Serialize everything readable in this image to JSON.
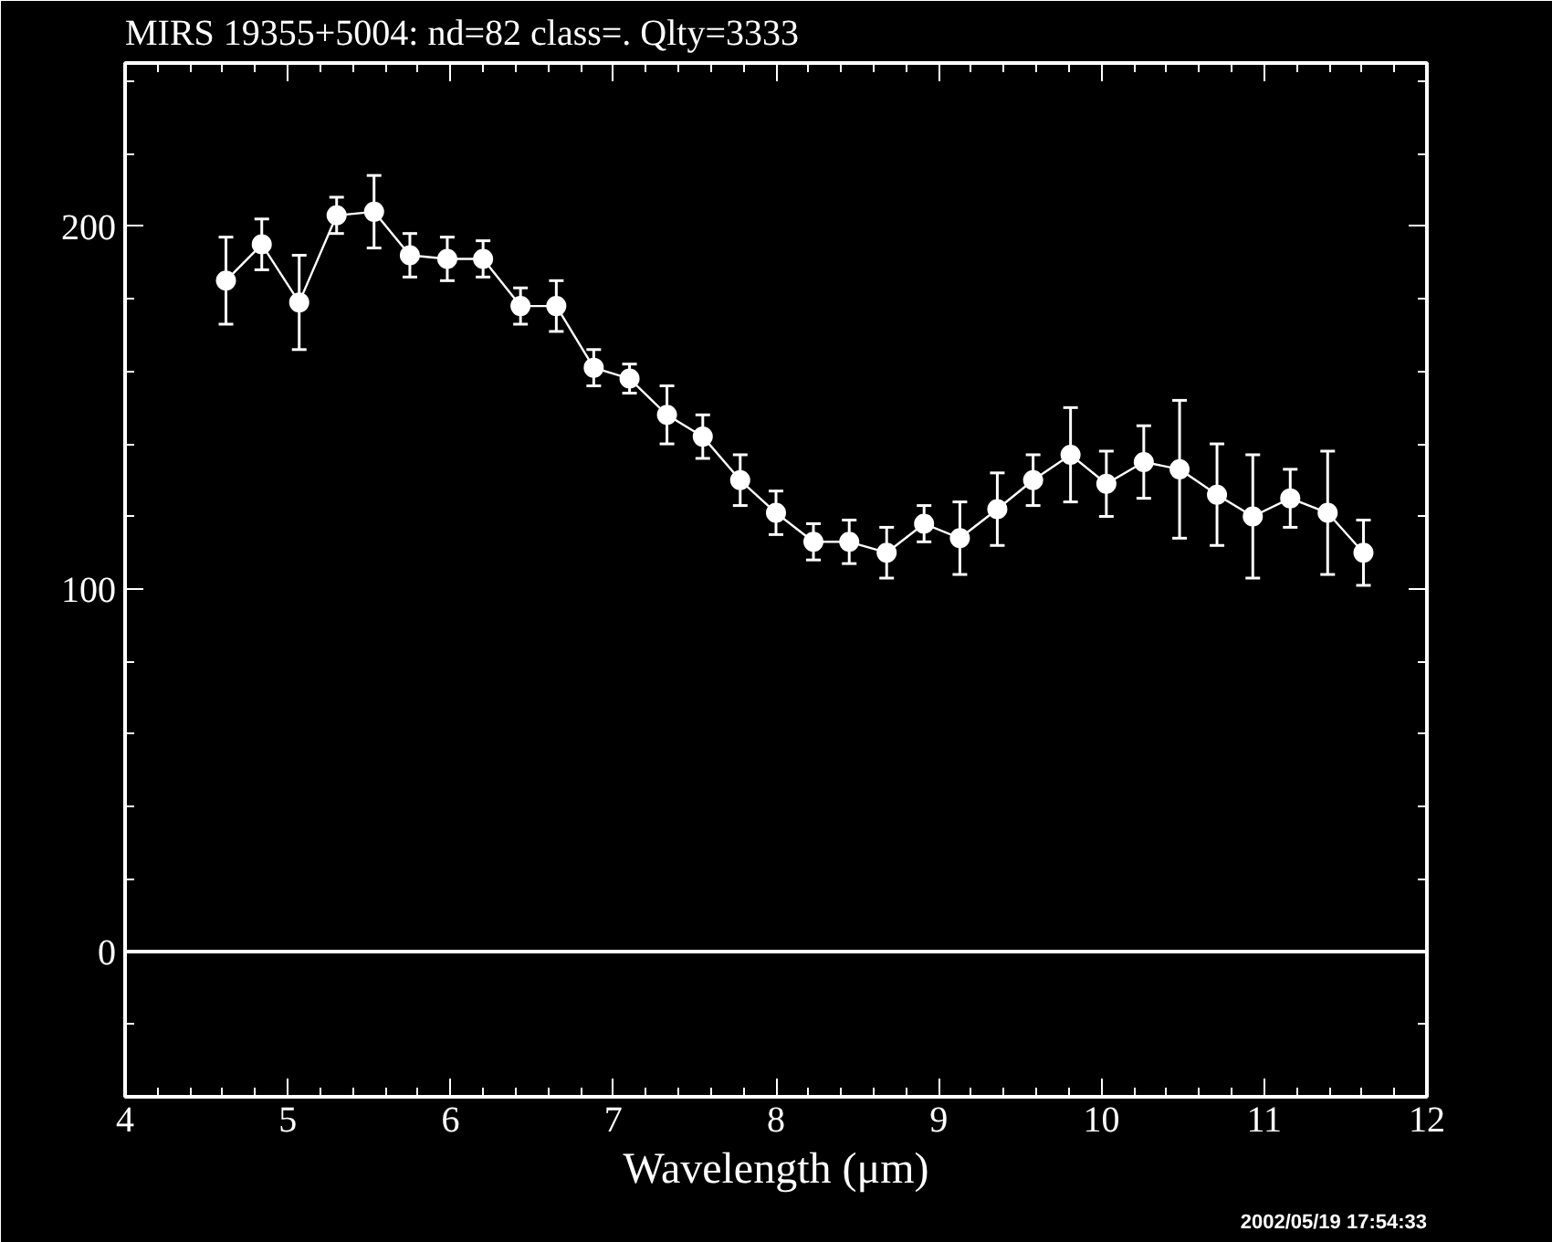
{
  "chart_data": {
    "type": "line",
    "title": "MIRS 19355+5004:    nd=82   class=.   Qlty=3333",
    "xlabel": "Wavelength (μm)",
    "annotations": [
      "2002/05/19 17:54:33"
    ],
    "x": [
      4.62,
      4.84,
      5.07,
      5.3,
      5.53,
      5.75,
      5.98,
      6.2,
      6.43,
      6.65,
      6.88,
      7.1,
      7.33,
      7.55,
      7.78,
      8.0,
      8.23,
      8.45,
      8.68,
      8.91,
      9.13,
      9.36,
      9.58,
      9.81,
      10.03,
      10.26,
      10.48,
      10.71,
      10.93,
      11.16,
      11.39,
      11.61
    ],
    "series": [
      {
        "color": "#ffffff",
        "values": [
          185,
          195,
          179,
          203,
          204,
          192,
          191,
          191,
          178,
          178,
          161,
          158,
          148,
          142,
          130,
          121,
          113,
          113,
          110,
          118,
          114,
          122,
          130,
          137,
          129,
          135,
          133,
          126,
          120,
          125,
          121,
          110
        ],
        "errors": [
          12,
          7,
          13,
          5,
          10,
          6,
          6,
          5,
          5,
          7,
          5,
          4,
          8,
          6,
          7,
          6,
          5,
          6,
          7,
          5,
          10,
          10,
          7,
          13,
          9,
          10,
          19,
          14,
          17,
          8,
          17,
          9
        ]
      }
    ],
    "xlim": [
      4,
      12
    ],
    "ylim": [
      -40,
      245
    ],
    "xticks": [
      4,
      {
        "value": 4.2,
        "label": null
      },
      {
        "value": 4.4,
        "label": null
      },
      {
        "value": 4.6,
        "label": null
      },
      {
        "value": 4.8,
        "label": null
      },
      5,
      {
        "value": 5.2,
        "label": null
      },
      {
        "value": 5.4,
        "label": null
      },
      {
        "value": 5.6,
        "label": null
      },
      {
        "value": 5.8,
        "label": null
      },
      6,
      {
        "value": 6.2,
        "label": null
      },
      {
        "value": 6.4,
        "label": null
      },
      {
        "value": 6.6,
        "label": null
      },
      {
        "value": 6.8,
        "label": null
      },
      7,
      {
        "value": 7.2,
        "label": null
      },
      {
        "value": 7.4,
        "label": null
      },
      {
        "value": 7.6,
        "label": null
      },
      {
        "value": 7.8,
        "label": null
      },
      8,
      {
        "value": 8.2,
        "label": null
      },
      {
        "value": 8.4,
        "label": null
      },
      {
        "value": 8.6,
        "label": null
      },
      {
        "value": 8.8,
        "label": null
      },
      9,
      {
        "value": 9.2,
        "label": null
      },
      {
        "value": 9.4,
        "label": null
      },
      {
        "value": 9.6,
        "label": null
      },
      {
        "value": 9.8,
        "label": null
      },
      10,
      {
        "value": 10.2,
        "label": null
      },
      {
        "value": 10.4,
        "label": null
      },
      {
        "value": 10.6,
        "label": null
      },
      {
        "value": 10.8,
        "label": null
      },
      11,
      {
        "value": 11.2,
        "label": null
      },
      {
        "value": 11.4,
        "label": null
      },
      {
        "value": 11.6,
        "label": null
      },
      {
        "value": 11.8,
        "label": null
      },
      12
    ],
    "yticks": [
      {
        "value": -20,
        "label": null
      },
      0,
      {
        "value": 20,
        "label": null
      },
      {
        "value": 40,
        "label": null
      },
      {
        "value": 60,
        "label": null
      },
      {
        "value": 80,
        "label": null
      },
      100,
      {
        "value": 120,
        "label": null
      },
      {
        "value": 140,
        "label": null
      },
      {
        "value": 160,
        "label": null
      },
      {
        "value": 180,
        "label": null
      },
      200,
      {
        "value": 220,
        "label": null
      },
      {
        "value": 240,
        "label": null
      }
    ],
    "ref_lines": [
      {
        "axis": "y",
        "value": 0,
        "color": "#ffffff",
        "line_style": "solid"
      }
    ],
    "marker": "circle",
    "line_style": "solid"
  }
}
